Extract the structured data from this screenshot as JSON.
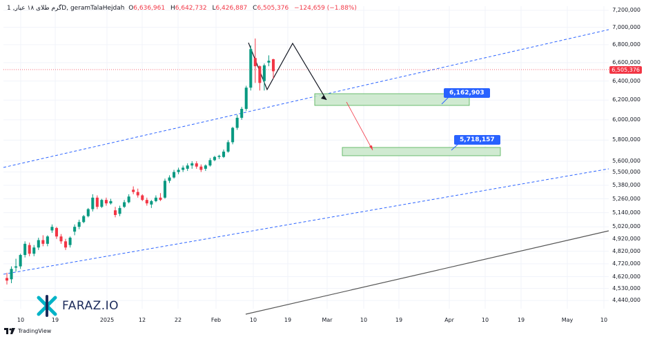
{
  "header": {
    "symbol": "1 ,گرم طلای ۱۸ عیارD, geramTalaHejdah",
    "o_label": "O",
    "o_value": "6,636,961",
    "h_label": "H",
    "h_value": "6,642,732",
    "l_label": "L",
    "l_value": "6,426,887",
    "c_label": "C",
    "c_value": "6,505,376",
    "change": "−124,659 (−1.88%)"
  },
  "current_price_label": "6,505,376",
  "zones": [
    {
      "label": "6,162,903",
      "price_low": 6140000,
      "price_high": 6250000
    },
    {
      "label": "5,718,157",
      "price_low": 5640000,
      "price_high": 5730000
    }
  ],
  "logo": {
    "text": "FARAZ.IO"
  },
  "footer": {
    "brand": "TradingView"
  },
  "colors": {
    "up": "#089981",
    "down": "#f23645",
    "trend_dashed": "#2962ff",
    "zone_fill": "#c8e6c9",
    "zone_border": "#4caf50",
    "label_bg": "#2962ff"
  },
  "chart_data": {
    "type": "candlestick",
    "y_scale": "log",
    "ylim": [
      4380000,
      7250000
    ],
    "y_ticks": [
      "7,200,000",
      "7,000,000",
      "6,800,000",
      "6,600,000",
      "6,400,000",
      "6,200,000",
      "6,000,000",
      "5,800,000",
      "5,600,000",
      "5,500,000",
      "5,380,000",
      "5,260,000",
      "5,140,000",
      "5,020,000",
      "4,920,000",
      "4,820,000",
      "4,720,000",
      "4,620,000",
      "4,530,000",
      "4,440,000"
    ],
    "x_ticks": [
      "10",
      "19",
      "2025",
      "12",
      "22",
      "Feb",
      "10",
      "19",
      "Mar",
      "10",
      "19",
      "Apr",
      "10",
      "19",
      "May",
      "10"
    ],
    "candles": [
      {
        "o": 4610000,
        "h": 4650000,
        "l": 4560000,
        "c": 4590000
      },
      {
        "o": 4600000,
        "h": 4700000,
        "l": 4570000,
        "c": 4680000
      },
      {
        "o": 4690000,
        "h": 4760000,
        "l": 4660000,
        "c": 4700000
      },
      {
        "o": 4700000,
        "h": 4800000,
        "l": 4680000,
        "c": 4790000
      },
      {
        "o": 4790000,
        "h": 4900000,
        "l": 4770000,
        "c": 4880000
      },
      {
        "o": 4870000,
        "h": 4890000,
        "l": 4780000,
        "c": 4800000
      },
      {
        "o": 4800000,
        "h": 4870000,
        "l": 4780000,
        "c": 4850000
      },
      {
        "o": 4850000,
        "h": 4930000,
        "l": 4830000,
        "c": 4910000
      },
      {
        "o": 4910000,
        "h": 4950000,
        "l": 4860000,
        "c": 4880000
      },
      {
        "o": 4880000,
        "h": 4950000,
        "l": 4860000,
        "c": 4940000
      },
      {
        "o": 4990000,
        "h": 5040000,
        "l": 4970000,
        "c": 5020000
      },
      {
        "o": 5010000,
        "h": 5020000,
        "l": 4920000,
        "c": 4940000
      },
      {
        "o": 4940000,
        "h": 4960000,
        "l": 4880000,
        "c": 4900000
      },
      {
        "o": 4900000,
        "h": 4920000,
        "l": 4830000,
        "c": 4850000
      },
      {
        "o": 4870000,
        "h": 4940000,
        "l": 4850000,
        "c": 4930000
      },
      {
        "o": 4980000,
        "h": 5040000,
        "l": 4950000,
        "c": 5020000
      },
      {
        "o": 5020000,
        "h": 5080000,
        "l": 5000000,
        "c": 5060000
      },
      {
        "o": 5060000,
        "h": 5120000,
        "l": 5050000,
        "c": 5110000
      },
      {
        "o": 5110000,
        "h": 5180000,
        "l": 5100000,
        "c": 5170000
      },
      {
        "o": 5170000,
        "h": 5300000,
        "l": 5150000,
        "c": 5270000
      },
      {
        "o": 5270000,
        "h": 5290000,
        "l": 5170000,
        "c": 5190000
      },
      {
        "o": 5190000,
        "h": 5260000,
        "l": 5180000,
        "c": 5250000
      },
      {
        "o": 5250000,
        "h": 5270000,
        "l": 5200000,
        "c": 5220000
      },
      {
        "o": 5220000,
        "h": 5260000,
        "l": 5210000,
        "c": 5240000
      },
      {
        "o": 5160000,
        "h": 5190000,
        "l": 5100000,
        "c": 5120000
      },
      {
        "o": 5130000,
        "h": 5200000,
        "l": 5110000,
        "c": 5180000
      },
      {
        "o": 5190000,
        "h": 5250000,
        "l": 5180000,
        "c": 5230000
      },
      {
        "o": 5230000,
        "h": 5300000,
        "l": 5220000,
        "c": 5280000
      },
      {
        "o": 5340000,
        "h": 5370000,
        "l": 5300000,
        "c": 5320000
      },
      {
        "o": 5320000,
        "h": 5350000,
        "l": 5270000,
        "c": 5290000
      },
      {
        "o": 5290000,
        "h": 5300000,
        "l": 5240000,
        "c": 5250000
      },
      {
        "o": 5250000,
        "h": 5270000,
        "l": 5200000,
        "c": 5220000
      },
      {
        "o": 5210000,
        "h": 5250000,
        "l": 5180000,
        "c": 5240000
      },
      {
        "o": 5240000,
        "h": 5290000,
        "l": 5230000,
        "c": 5270000
      },
      {
        "o": 5270000,
        "h": 5310000,
        "l": 5240000,
        "c": 5250000
      },
      {
        "o": 5270000,
        "h": 5440000,
        "l": 5260000,
        "c": 5420000
      },
      {
        "o": 5420000,
        "h": 5470000,
        "l": 5400000,
        "c": 5450000
      },
      {
        "o": 5450000,
        "h": 5520000,
        "l": 5440000,
        "c": 5500000
      },
      {
        "o": 5500000,
        "h": 5540000,
        "l": 5480000,
        "c": 5520000
      },
      {
        "o": 5520000,
        "h": 5560000,
        "l": 5500000,
        "c": 5540000
      },
      {
        "o": 5530000,
        "h": 5580000,
        "l": 5510000,
        "c": 5560000
      },
      {
        "o": 5560000,
        "h": 5600000,
        "l": 5530000,
        "c": 5580000
      },
      {
        "o": 5580000,
        "h": 5600000,
        "l": 5530000,
        "c": 5550000
      },
      {
        "o": 5550000,
        "h": 5570000,
        "l": 5500000,
        "c": 5520000
      },
      {
        "o": 5530000,
        "h": 5570000,
        "l": 5510000,
        "c": 5560000
      },
      {
        "o": 5560000,
        "h": 5630000,
        "l": 5550000,
        "c": 5610000
      },
      {
        "o": 5610000,
        "h": 5650000,
        "l": 5600000,
        "c": 5640000
      },
      {
        "o": 5640000,
        "h": 5660000,
        "l": 5620000,
        "c": 5650000
      },
      {
        "o": 5640000,
        "h": 5710000,
        "l": 5630000,
        "c": 5690000
      },
      {
        "o": 5690000,
        "h": 5800000,
        "l": 5680000,
        "c": 5780000
      },
      {
        "o": 5780000,
        "h": 5930000,
        "l": 5760000,
        "c": 5920000
      },
      {
        "o": 5920000,
        "h": 6050000,
        "l": 5900000,
        "c": 6020000
      },
      {
        "o": 6020000,
        "h": 6130000,
        "l": 6000000,
        "c": 6110000
      },
      {
        "o": 6110000,
        "h": 6350000,
        "l": 6090000,
        "c": 6330000
      },
      {
        "o": 6330000,
        "h": 6790000,
        "l": 6300000,
        "c": 6750000
      },
      {
        "o": 6650000,
        "h": 6870000,
        "l": 6380000,
        "c": 6560000
      },
      {
        "o": 6560000,
        "h": 6570000,
        "l": 6300000,
        "c": 6380000
      },
      {
        "o": 6400000,
        "h": 6590000,
        "l": 6300000,
        "c": 6570000
      },
      {
        "o": 6600000,
        "h": 6680000,
        "l": 6560000,
        "c": 6620000
      },
      {
        "o": 6636961,
        "h": 6642732,
        "l": 6426887,
        "c": 6505376
      }
    ]
  }
}
